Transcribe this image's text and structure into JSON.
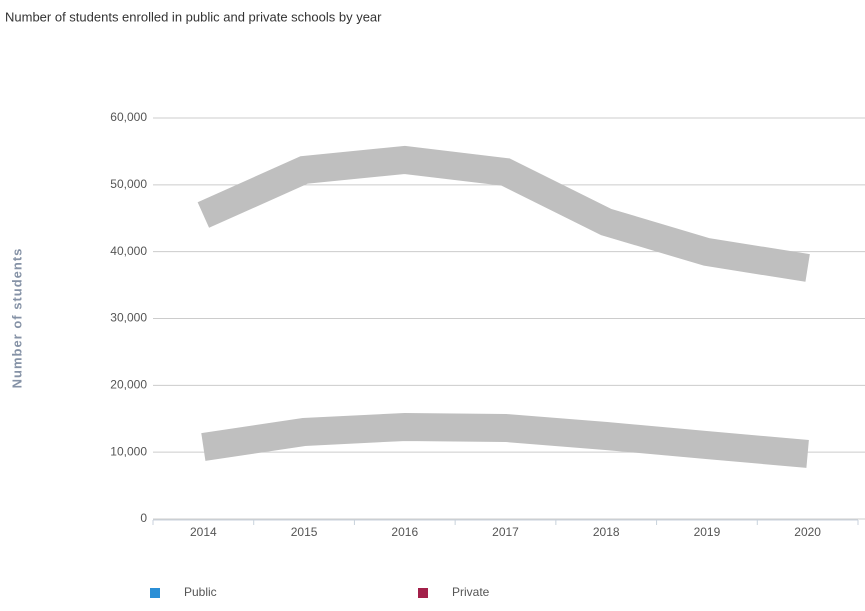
{
  "chart_data": {
    "type": "line",
    "title": "Number of students enrolled in public and private schools by year",
    "y_label": "Number of students",
    "categories": [
      "2014",
      "2015",
      "2016",
      "2017",
      "2018",
      "2019",
      "2020"
    ],
    "series": [
      {
        "name": "Public",
        "color": "#2b8fd6",
        "values": [
          45490,
          52220,
          53720,
          51920,
          44440,
          39950,
          37560
        ]
      },
      {
        "name": "Private",
        "color": "#a3204a",
        "values": [
          10770,
          13020,
          13770,
          13620,
          12420,
          11070,
          9730
        ]
      }
    ],
    "line_color": "#bfbfbf",
    "ylim": [
      0,
      60000
    ],
    "yticks": [
      0,
      {
        "value": 10000,
        "label": "10,000"
      },
      {
        "value": 20000,
        "label": "20,000"
      },
      {
        "value": 30000,
        "label": "30,000"
      },
      {
        "value": 40000,
        "label": "40,000"
      },
      {
        "value": 50000,
        "label": "50,000"
      },
      {
        "value": 60000,
        "label": "60,000"
      }
    ],
    "grid": true
  }
}
